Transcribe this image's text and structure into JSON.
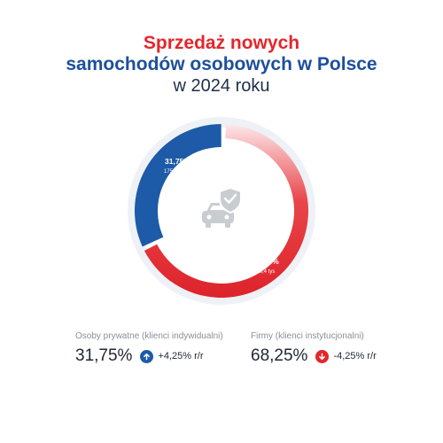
{
  "title": {
    "line1": "Sprzedaż nowych",
    "line2": "samochodów osobowych w Polsce",
    "line3": "w 2024 roku"
  },
  "colors": {
    "private": "#1d5aa8",
    "company": "#e3262c",
    "track": "#eef1f6",
    "icon": "#c9ccd1",
    "up": "#1d5aa8",
    "down": "#e3262c"
  },
  "icons": {
    "center": "car-shield-check-icon",
    "up": "arrow-up-icon",
    "down": "arrow-down-icon"
  },
  "chart_data": {
    "type": "pie",
    "variant": "donut",
    "categories": [
      "Osoby prywatne (klienci indywidualni)",
      "Firmy (klienci instytucjonalni)"
    ],
    "values": [
      31.75,
      68.25
    ],
    "value_labels": [
      "31,75%",
      "68,25%"
    ],
    "sub_labels": [
      "175,1 tys",
      "376,4 tys"
    ],
    "units": "%"
  },
  "stats": [
    {
      "label": "Osoby prywatne (klienci indywidualni)",
      "value": "31,75%",
      "change": "+4,25% r/r",
      "direction": "up"
    },
    {
      "label": "Firmy (klienci instytucjonalni)",
      "value": "68,25%",
      "change": "-4,25% r/r",
      "direction": "down"
    }
  ]
}
